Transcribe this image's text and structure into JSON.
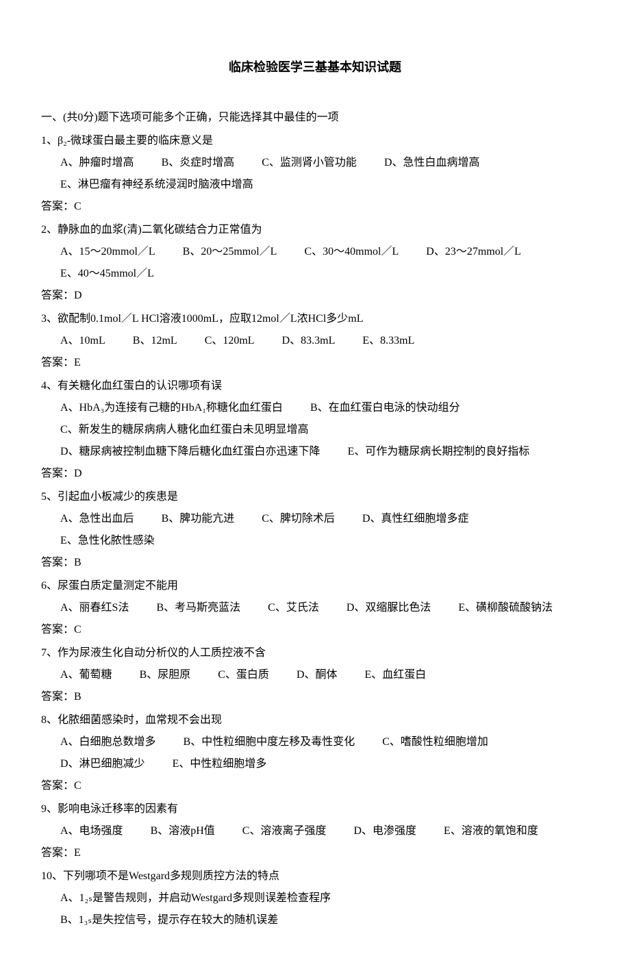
{
  "title": "临床检验医学三基基本知识试题",
  "sectionHeader": "一、(共0分)题下选项可能多个正确，只能选择其中最佳的一项",
  "answerLabel": "答案：",
  "questions": [
    {
      "num": "1、",
      "text": "β₂-微球蛋白最主要的临床意义是",
      "options": [
        "A、肿瘤时增高",
        "B、炎症时增高",
        "C、监测肾小管功能",
        "D、急性白血病增高",
        "E、淋巴瘤有神经系统浸润时脑液中增高"
      ],
      "answer": "C"
    },
    {
      "num": "2、",
      "text": "静脉血的血浆(清)二氧化碳结合力正常值为",
      "options": [
        "A、15～20mmol／L",
        "B、20～25mmol／L",
        "C、30～40mmol／L",
        "D、23～27mmol／L",
        "E、40～45mmol／L"
      ],
      "answer": "D"
    },
    {
      "num": "3、",
      "text": "欲配制0.1mol／L HCl溶液1000mL，应取12mol／L浓HCl多少mL",
      "options": [
        "A、10mL",
        "B、12mL",
        "C、120mL",
        "D、83.3mL",
        "E、8.33mL"
      ],
      "answer": "E"
    },
    {
      "num": "4、",
      "text": "有关糖化血红蛋白的认识哪项有误",
      "options": [
        "A、HbA₃为连接有己糖的HbA₁称糖化血红蛋白",
        "B、在血红蛋白电泳的快动组分",
        "C、新发生的糖尿病病人糖化血红蛋白未见明显增高",
        "D、糖尿病被控制血糖下降后糖化血红蛋白亦迅速下降",
        "E、可作为糖尿病长期控制的良好指标"
      ],
      "answer": "D"
    },
    {
      "num": "5、",
      "text": "引起血小板减少的疾患是",
      "options": [
        "A、急性出血后",
        "B、脾功能亢进",
        "C、脾切除术后",
        "D、真性红细胞增多症",
        "E、急性化脓性感染"
      ],
      "answer": "B"
    },
    {
      "num": "6、",
      "text": "尿蛋白质定量测定不能用",
      "options": [
        "A、丽春红S法",
        "B、考马斯亮蓝法",
        "C、艾氏法",
        "D、双缩脲比色法",
        "E、磺柳酸硫酸钠法"
      ],
      "answer": "C"
    },
    {
      "num": "7、",
      "text": "作为尿液生化自动分析仪的人工质控液不含",
      "options": [
        "A、葡萄糖",
        "B、尿胆原",
        "C、蛋白质",
        "D、酮体",
        "E、血红蛋白"
      ],
      "answer": "B"
    },
    {
      "num": "8、",
      "text": "化脓细菌感染时，血常规不会出现",
      "options": [
        "A、白细胞总数增多",
        "B、中性粒细胞中度左移及毒性变化",
        "C、嗜酸性粒细胞增加",
        "D、淋巴细胞减少",
        "E、中性粒细胞增多"
      ],
      "answer": "C"
    },
    {
      "num": "9、",
      "text": "影响电泳迁移率的因素有",
      "options": [
        "A、电场强度",
        "B、溶液pH值",
        "C、溶液离子强度",
        "D、电渗强度",
        "E、溶液的氧饱和度"
      ],
      "answer": "E"
    },
    {
      "num": "10、",
      "text": "下列哪项不是Westgard多规则质控方法的特点",
      "options": [
        "A、1₂ₛ是警告规则，并启动Westgard多规则误差检查程序",
        "B、1₃ₛ是失控信号，提示存在较大的随机误差"
      ],
      "answer": ""
    }
  ]
}
